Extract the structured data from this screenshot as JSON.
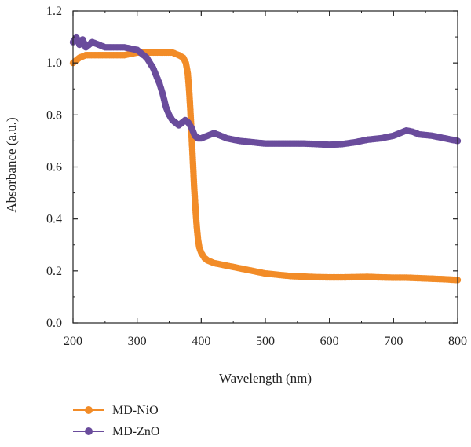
{
  "chart_data": {
    "type": "scatter",
    "xlabel": "Wavelength (nm)",
    "ylabel": "Absorbance (a.u.)",
    "xlim": [
      200,
      800
    ],
    "ylim": [
      0.0,
      1.2
    ],
    "xticks": [
      "200",
      "300",
      "400",
      "500",
      "600",
      "700",
      "800"
    ],
    "yticks": [
      "0.0",
      "0.2",
      "0.4",
      "0.6",
      "0.8",
      "1.0",
      "1.2"
    ],
    "grid": false,
    "legend_position": "bottom-left",
    "series": [
      {
        "name": "MD-NiO",
        "color": "#F28C28",
        "marker": "circle",
        "x": [
          200,
          210,
          220,
          240,
          260,
          280,
          300,
          320,
          340,
          355,
          365,
          372,
          376,
          379,
          381,
          383,
          385,
          387,
          389,
          391,
          393,
          395,
          397,
          400,
          405,
          410,
          420,
          440,
          460,
          480,
          500,
          520,
          540,
          560,
          580,
          600,
          620,
          640,
          660,
          680,
          700,
          720,
          740,
          760,
          780,
          800
        ],
        "y": [
          1.0,
          1.02,
          1.03,
          1.03,
          1.03,
          1.03,
          1.04,
          1.04,
          1.04,
          1.04,
          1.03,
          1.02,
          1.0,
          0.96,
          0.9,
          0.82,
          0.72,
          0.62,
          0.52,
          0.44,
          0.37,
          0.32,
          0.29,
          0.27,
          0.25,
          0.24,
          0.23,
          0.22,
          0.21,
          0.2,
          0.19,
          0.185,
          0.18,
          0.178,
          0.176,
          0.175,
          0.175,
          0.176,
          0.177,
          0.175,
          0.174,
          0.174,
          0.172,
          0.17,
          0.168,
          0.165
        ]
      },
      {
        "name": "MD-ZnO",
        "color": "#6A4C9C",
        "marker": "circle",
        "x": [
          200,
          205,
          210,
          215,
          220,
          230,
          240,
          250,
          260,
          280,
          300,
          315,
          325,
          335,
          340,
          345,
          350,
          355,
          360,
          365,
          370,
          375,
          380,
          385,
          390,
          395,
          400,
          410,
          420,
          430,
          440,
          460,
          480,
          500,
          520,
          540,
          560,
          580,
          600,
          620,
          640,
          660,
          680,
          700,
          710,
          720,
          730,
          740,
          760,
          780,
          800
        ],
        "y": [
          1.08,
          1.1,
          1.07,
          1.09,
          1.06,
          1.08,
          1.07,
          1.06,
          1.06,
          1.06,
          1.05,
          1.02,
          0.98,
          0.92,
          0.88,
          0.83,
          0.8,
          0.78,
          0.77,
          0.76,
          0.77,
          0.78,
          0.77,
          0.75,
          0.72,
          0.71,
          0.71,
          0.72,
          0.73,
          0.72,
          0.71,
          0.7,
          0.695,
          0.69,
          0.69,
          0.69,
          0.69,
          0.688,
          0.685,
          0.688,
          0.695,
          0.705,
          0.71,
          0.72,
          0.73,
          0.74,
          0.735,
          0.725,
          0.72,
          0.71,
          0.7
        ]
      }
    ]
  }
}
